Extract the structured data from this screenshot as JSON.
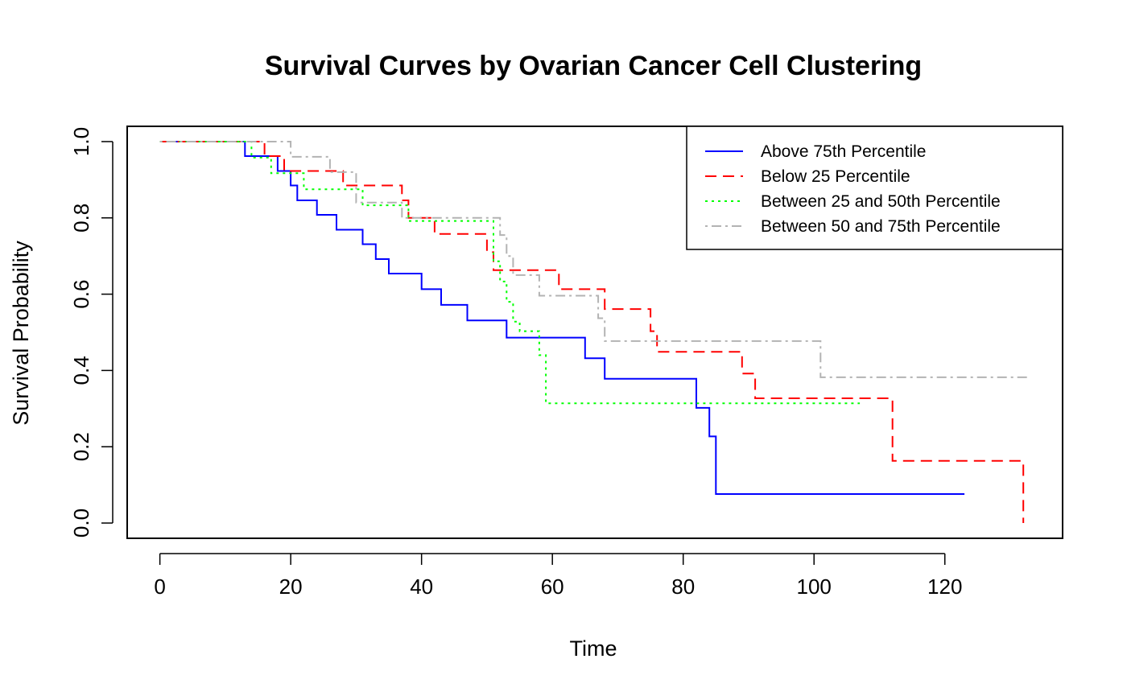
{
  "chart_data": {
    "type": "line",
    "title": "Survival Curves by Ovarian Cancer Cell Clustering",
    "xlabel": "Time",
    "ylabel": "Survival Probability",
    "xlim": [
      -5,
      138
    ],
    "ylim": [
      -0.04,
      1.04
    ],
    "xticks": [
      0,
      20,
      40,
      60,
      80,
      100,
      120
    ],
    "yticks": [
      0.0,
      0.2,
      0.4,
      0.6,
      0.8,
      1.0
    ],
    "xtick_labels": [
      "0",
      "20",
      "40",
      "60",
      "80",
      "100",
      "120"
    ],
    "ytick_labels": [
      "0.0",
      "0.2",
      "0.4",
      "0.6",
      "0.8",
      "1.0"
    ],
    "grid": false,
    "legend_position": "top-right",
    "step": true,
    "series": [
      {
        "name": "Above 75th Percentile",
        "color": "#0000ff",
        "dash": "solid",
        "x": [
          0,
          13,
          18,
          20,
          21,
          24,
          27,
          31,
          33,
          35,
          40,
          43,
          47,
          53,
          65,
          68,
          82,
          84,
          85,
          123
        ],
        "y": [
          1.0,
          0.962,
          0.923,
          0.885,
          0.846,
          0.808,
          0.769,
          0.731,
          0.692,
          0.654,
          0.613,
          0.572,
          0.531,
          0.486,
          0.432,
          0.378,
          0.302,
          0.227,
          0.076,
          0.076
        ]
      },
      {
        "name": "Below 25 Percentile",
        "color": "#ff0000",
        "dash": "dashed",
        "x": [
          0,
          16,
          19,
          28,
          37,
          38,
          42,
          50,
          51,
          61,
          68,
          75,
          76,
          89,
          91,
          112,
          132
        ],
        "y": [
          1.0,
          0.962,
          0.923,
          0.885,
          0.846,
          0.8,
          0.758,
          0.71,
          0.663,
          0.613,
          0.561,
          0.503,
          0.449,
          0.392,
          0.327,
          0.163,
          0.0
        ]
      },
      {
        "name": "Between 25 and 50th Percentile",
        "color": "#00ff00",
        "dash": "dotted",
        "x": [
          0,
          14,
          17,
          22,
          31,
          38,
          40,
          51,
          52,
          53,
          54,
          55,
          58,
          59,
          107
        ],
        "y": [
          1.0,
          0.958,
          0.917,
          0.875,
          0.833,
          0.792,
          0.792,
          0.686,
          0.633,
          0.58,
          0.528,
          0.503,
          0.44,
          0.314,
          0.314
        ]
      },
      {
        "name": "Between 50 and 75th Percentile",
        "color": "#b3b3b3",
        "dash": "dotdash",
        "x": [
          0,
          20,
          26,
          30,
          37,
          52,
          53,
          54,
          55,
          58,
          67,
          68,
          101,
          133
        ],
        "y": [
          1.0,
          0.96,
          0.92,
          0.84,
          0.8,
          0.755,
          0.7,
          0.65,
          0.65,
          0.596,
          0.537,
          0.477,
          0.382,
          0.382
        ]
      }
    ]
  }
}
